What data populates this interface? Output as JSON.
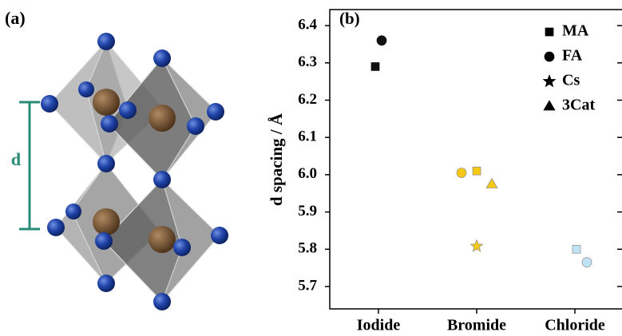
{
  "panel_a": {
    "label": "(a)",
    "dimension_label": "d"
  },
  "chart_data": {
    "type": "scatter",
    "panel_label": "(b)",
    "y_label": "d spacing / Å",
    "categories": [
      "Iodide",
      "Bromide",
      "Chloride"
    ],
    "category_colors": [
      "#111111",
      "#f5c816",
      "#bfe3f4"
    ],
    "series": [
      {
        "name": "MA",
        "marker": "square",
        "color": "#000000",
        "values": [
          6.29,
          6.01,
          5.8
        ]
      },
      {
        "name": "FA",
        "marker": "circle",
        "color": "#000000",
        "values": [
          6.36,
          6.005,
          5.765
        ]
      },
      {
        "name": "Cs",
        "marker": "star",
        "color": "#000000",
        "values": [
          null,
          5.808,
          null
        ]
      },
      {
        "name": "3Cat",
        "marker": "triangle",
        "color": "#000000",
        "values": [
          null,
          5.975,
          null
        ]
      }
    ],
    "ylim": [
      5.64,
      6.443
    ],
    "yticks": [
      5.7,
      5.8,
      5.9,
      {
        "value": 6,
        "label": "6.0"
      },
      6.1,
      6.2,
      6.3,
      6.4
    ],
    "legend": "upper right"
  }
}
